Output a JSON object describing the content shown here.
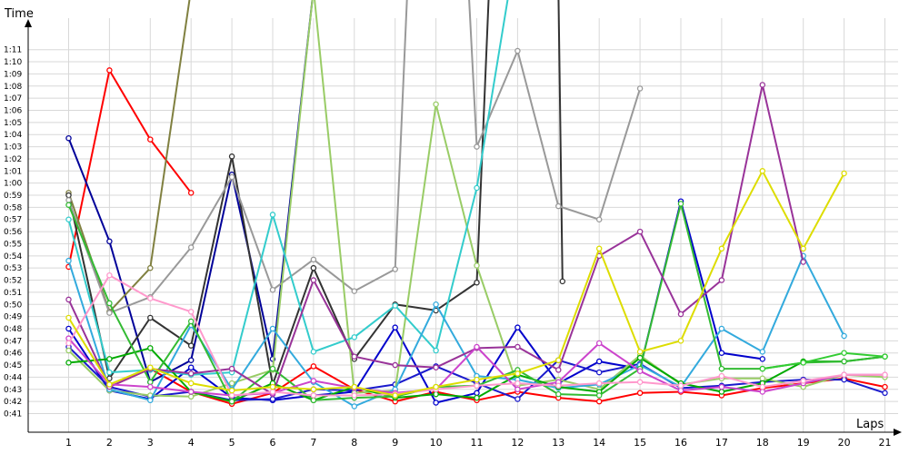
{
  "chart_data": {
    "type": "line",
    "title": "",
    "xlabel": "Laps",
    "ylabel": "Time",
    "x_ticks": [
      1,
      2,
      3,
      4,
      5,
      6,
      7,
      8,
      9,
      10,
      11,
      12,
      13,
      14,
      15,
      16,
      17,
      18,
      19,
      20,
      21
    ],
    "y_ticks": [
      "0:41",
      "0:42",
      "0:43",
      "0:44",
      "0:45",
      "0:46",
      "0:47",
      "0:48",
      "0:49",
      "0:50",
      "0:51",
      "0:52",
      "0:53",
      "0:54",
      "0:55",
      "0:56",
      "0:57",
      "0:58",
      "0:59",
      "1:00",
      "1:01",
      "1:02",
      "1:03",
      "1:04",
      "1:05",
      "1:06",
      "1:07",
      "1:08",
      "1:09",
      "1:10",
      "1:11"
    ],
    "y_unit": "seconds",
    "ylim": [
      41,
      71
    ],
    "xlim": [
      1,
      21
    ],
    "grid": true,
    "legend": "none",
    "series": [
      {
        "color": "#ff0000",
        "values": [
          [
            1,
            53.1
          ],
          [
            2,
            69.3
          ],
          [
            3,
            63.6
          ],
          [
            4,
            59.2
          ]
        ]
      },
      {
        "color": "#ff0000",
        "values": [
          [
            2,
            43.2
          ],
          [
            3,
            44.7
          ],
          [
            4,
            42.8
          ],
          [
            5,
            41.8
          ],
          [
            6,
            42.7
          ],
          [
            7,
            44.9
          ],
          [
            8,
            43.0
          ],
          [
            9,
            42.0
          ],
          [
            10,
            42.8
          ],
          [
            11,
            42.1
          ],
          [
            12,
            42.8
          ],
          [
            13,
            42.3
          ],
          [
            14,
            42.0
          ],
          [
            15,
            42.7
          ],
          [
            16,
            42.8
          ],
          [
            17,
            42.5
          ],
          [
            18,
            43.1
          ],
          [
            19,
            43.5
          ],
          [
            20,
            43.9
          ],
          [
            21,
            43.2
          ]
        ]
      },
      {
        "color": "#000099",
        "values": [
          [
            1,
            63.7
          ],
          [
            2,
            55.2
          ],
          [
            3,
            43.6
          ],
          [
            4,
            45.4
          ],
          [
            5,
            60.7
          ],
          [
            6,
            45.5
          ],
          [
            7,
            76
          ]
        ]
      },
      {
        "color": "#0000cc",
        "values": [
          [
            1,
            48.0
          ],
          [
            2,
            42.9
          ],
          [
            3,
            42.2
          ],
          [
            4,
            44.8
          ],
          [
            5,
            42.3
          ],
          [
            6,
            42.1
          ],
          [
            7,
            42.5
          ],
          [
            8,
            42.8
          ],
          [
            9,
            48.1
          ],
          [
            10,
            41.9
          ],
          [
            11,
            42.7
          ],
          [
            12,
            48.1
          ],
          [
            13,
            43.5
          ],
          [
            14,
            45.3
          ],
          [
            15,
            44.7
          ],
          [
            16,
            58.5
          ],
          [
            17,
            46.0
          ],
          [
            18,
            45.5
          ]
        ]
      },
      {
        "color": "#1a1acc",
        "values": [
          [
            1,
            46.5
          ],
          [
            2,
            43.2
          ],
          [
            3,
            42.4
          ],
          [
            4,
            42.8
          ],
          [
            5,
            42.1
          ],
          [
            6,
            42.2
          ],
          [
            7,
            43.0
          ],
          [
            8,
            42.9
          ],
          [
            9,
            43.4
          ],
          [
            10,
            44.9
          ],
          [
            11,
            43.5
          ],
          [
            12,
            42.2
          ],
          [
            13,
            45.4
          ],
          [
            14,
            44.4
          ],
          [
            15,
            45.1
          ],
          [
            16,
            43.1
          ],
          [
            17,
            43.3
          ],
          [
            18,
            43.6
          ],
          [
            19,
            43.8
          ],
          [
            20,
            43.8
          ],
          [
            21,
            42.7
          ]
        ]
      },
      {
        "color": "#808040",
        "values": [
          [
            1,
            59.2
          ],
          [
            2,
            49.4
          ],
          [
            3,
            53.0
          ],
          [
            4,
            76
          ]
        ]
      },
      {
        "color": "#333333",
        "values": [
          [
            1,
            59.0
          ],
          [
            2,
            43.9
          ],
          [
            3,
            48.9
          ],
          [
            4,
            46.6
          ],
          [
            5,
            62.2
          ],
          [
            6,
            43.4
          ],
          [
            7,
            53.0
          ],
          [
            8,
            45.5
          ],
          [
            9,
            50.0
          ],
          [
            10,
            49.5
          ],
          [
            11,
            51.8
          ],
          [
            11.3,
            76
          ]
        ]
      },
      {
        "color": "#333333",
        "values": [
          [
            13,
            76
          ],
          [
            13.1,
            51.9
          ]
        ]
      },
      {
        "color": "#999999",
        "values": [
          [
            1,
            58.6
          ],
          [
            2,
            49.3
          ],
          [
            3,
            50.6
          ],
          [
            4,
            54.7
          ],
          [
            5,
            60.5
          ],
          [
            6,
            51.2
          ],
          [
            7,
            53.7
          ],
          [
            8,
            51.1
          ],
          [
            9,
            52.9
          ],
          [
            9.3,
            76
          ]
        ]
      },
      {
        "color": "#999999",
        "values": [
          [
            10.8,
            76
          ],
          [
            11,
            63.0
          ],
          [
            12,
            70.9
          ],
          [
            13,
            58.1
          ],
          [
            14,
            57.0
          ],
          [
            15,
            67.8
          ]
        ]
      },
      {
        "color": "#99cc66",
        "values": [
          [
            1,
            46.2
          ],
          [
            2,
            42.9
          ],
          [
            3,
            42.5
          ],
          [
            4,
            42.4
          ],
          [
            5,
            43.5
          ],
          [
            6,
            44.6
          ],
          [
            7,
            76
          ],
          [
            8,
            42.7
          ],
          [
            9,
            42.9
          ],
          [
            10,
            66.5
          ],
          [
            11,
            53.2
          ],
          [
            12,
            43.3
          ],
          [
            13,
            43.8
          ],
          [
            14,
            43.0
          ],
          [
            15,
            45.8
          ],
          [
            16,
            43.4
          ],
          [
            17,
            43.9
          ],
          [
            18,
            43.9
          ],
          [
            19,
            43.2
          ],
          [
            20,
            44.2
          ],
          [
            21,
            44.0
          ]
        ]
      },
      {
        "color": "#33cccc",
        "values": [
          [
            1,
            57.0
          ],
          [
            2,
            44.4
          ],
          [
            3,
            44.6
          ],
          [
            4,
            44.2
          ],
          [
            5,
            44.4
          ],
          [
            6,
            57.4
          ],
          [
            7,
            46.1
          ],
          [
            8,
            47.3
          ],
          [
            9,
            49.9
          ],
          [
            10,
            46.2
          ],
          [
            11,
            59.6
          ],
          [
            11.8,
            76
          ]
        ]
      },
      {
        "color": "#33aadd",
        "values": [
          [
            1,
            53.6
          ],
          [
            2,
            43.0
          ],
          [
            3,
            42.1
          ],
          [
            4,
            48.3
          ],
          [
            5,
            43.0
          ],
          [
            6,
            48.0
          ],
          [
            7,
            43.6
          ],
          [
            8,
            41.6
          ],
          [
            9,
            43.0
          ],
          [
            10,
            50.0
          ],
          [
            11,
            44.1
          ],
          [
            12,
            43.8
          ],
          [
            13,
            43.1
          ],
          [
            14,
            43.4
          ],
          [
            15,
            45.0
          ],
          [
            16,
            43.2
          ],
          [
            17,
            48.0
          ],
          [
            18,
            46.1
          ],
          [
            19,
            54.0
          ],
          [
            20,
            47.4
          ]
        ]
      },
      {
        "color": "#00aa00",
        "values": [
          [
            1,
            45.2
          ],
          [
            2,
            45.5
          ],
          [
            3,
            46.4
          ],
          [
            4,
            42.8
          ],
          [
            5,
            42.0
          ],
          [
            6,
            43.5
          ],
          [
            7,
            42.1
          ],
          [
            8,
            43.2
          ],
          [
            9,
            42.3
          ],
          [
            10,
            42.6
          ],
          [
            11,
            42.3
          ],
          [
            12,
            44.2
          ],
          [
            13,
            43.2
          ],
          [
            14,
            42.8
          ],
          [
            15,
            45.6
          ],
          [
            16,
            43.5
          ],
          [
            17,
            42.8
          ],
          [
            18,
            43.5
          ],
          [
            19,
            45.3
          ],
          [
            20,
            45.3
          ],
          [
            21,
            45.7
          ]
        ]
      },
      {
        "color": "#33bb33",
        "values": [
          [
            1,
            58.2
          ],
          [
            2,
            50.1
          ],
          [
            3,
            43.6
          ],
          [
            4,
            48.6
          ],
          [
            5,
            42.0
          ],
          [
            6,
            44.7
          ],
          [
            7,
            42.1
          ],
          [
            8,
            42.3
          ],
          [
            9,
            42.4
          ],
          [
            10,
            43.2
          ],
          [
            11,
            43.3
          ],
          [
            12,
            44.6
          ],
          [
            13,
            42.6
          ],
          [
            14,
            42.5
          ],
          [
            15,
            44.7
          ],
          [
            16,
            58.3
          ],
          [
            17,
            44.7
          ],
          [
            18,
            44.7
          ],
          [
            19,
            45.2
          ],
          [
            20,
            45.3
          ],
          [
            21,
            45.7
          ]
        ]
      },
      {
        "color": "#33cc33",
        "values": [
          [
            18,
            44.7
          ],
          [
            19,
            45.2
          ],
          [
            20,
            46.0
          ],
          [
            21,
            45.7
          ]
        ]
      },
      {
        "color": "#993399",
        "values": [
          [
            1,
            50.4
          ],
          [
            2,
            43.2
          ],
          [
            3,
            44.7
          ],
          [
            4,
            44.3
          ],
          [
            5,
            44.7
          ],
          [
            6,
            42.6
          ],
          [
            7,
            52.0
          ],
          [
            8,
            45.7
          ],
          [
            9,
            45.0
          ],
          [
            10,
            44.8
          ],
          [
            11,
            46.4
          ],
          [
            12,
            46.5
          ],
          [
            13,
            44.6
          ],
          [
            14,
            54.0
          ],
          [
            15,
            56.0
          ],
          [
            16,
            49.2
          ],
          [
            17,
            52.0
          ],
          [
            18,
            68.1
          ],
          [
            19,
            53.5
          ]
        ]
      },
      {
        "color": "#cc44cc",
        "values": [
          [
            1,
            47.2
          ],
          [
            2,
            43.4
          ],
          [
            3,
            43.2
          ],
          [
            4,
            42.8
          ],
          [
            5,
            42.5
          ],
          [
            6,
            42.7
          ],
          [
            7,
            43.7
          ],
          [
            8,
            43.1
          ],
          [
            9,
            42.7
          ],
          [
            10,
            43.0
          ],
          [
            11,
            46.5
          ],
          [
            12,
            43.0
          ],
          [
            13,
            43.6
          ],
          [
            14,
            46.8
          ],
          [
            15,
            44.5
          ],
          [
            16,
            42.9
          ],
          [
            17,
            43.2
          ],
          [
            18,
            42.8
          ],
          [
            19,
            43.5
          ],
          [
            20,
            44.2
          ],
          [
            21,
            44.2
          ]
        ]
      },
      {
        "color": "#ff99cc",
        "values": [
          [
            1,
            46.8
          ],
          [
            2,
            52.4
          ],
          [
            3,
            50.5
          ],
          [
            4,
            49.4
          ],
          [
            5,
            42.5
          ],
          [
            6,
            42.8
          ],
          [
            7,
            42.5
          ],
          [
            8,
            42.5
          ],
          [
            9,
            42.6
          ],
          [
            10,
            43.0
          ],
          [
            11,
            43.3
          ],
          [
            12,
            43.5
          ],
          [
            13,
            43.3
          ],
          [
            14,
            43.5
          ],
          [
            15,
            43.6
          ],
          [
            16,
            43.3
          ],
          [
            17,
            44.1
          ],
          [
            18,
            43.2
          ],
          [
            19,
            43.7
          ],
          [
            20,
            44.2
          ],
          [
            21,
            44.2
          ]
        ]
      },
      {
        "color": "#dddd00",
        "values": [
          [
            1,
            48.9
          ],
          [
            2,
            43.4
          ],
          [
            3,
            44.8
          ],
          [
            4,
            43.5
          ],
          [
            5,
            42.9
          ],
          [
            6,
            43.2
          ],
          [
            7,
            43.0
          ],
          [
            8,
            43.2
          ],
          [
            9,
            42.5
          ],
          [
            10,
            43.2
          ],
          [
            11,
            43.8
          ],
          [
            12,
            44.3
          ],
          [
            13,
            45.4
          ],
          [
            14,
            54.6
          ],
          [
            15,
            46.1
          ],
          [
            16,
            47.0
          ],
          [
            17,
            54.6
          ],
          [
            18,
            61.0
          ],
          [
            19,
            54.6
          ],
          [
            20,
            60.8
          ]
        ]
      }
    ]
  }
}
